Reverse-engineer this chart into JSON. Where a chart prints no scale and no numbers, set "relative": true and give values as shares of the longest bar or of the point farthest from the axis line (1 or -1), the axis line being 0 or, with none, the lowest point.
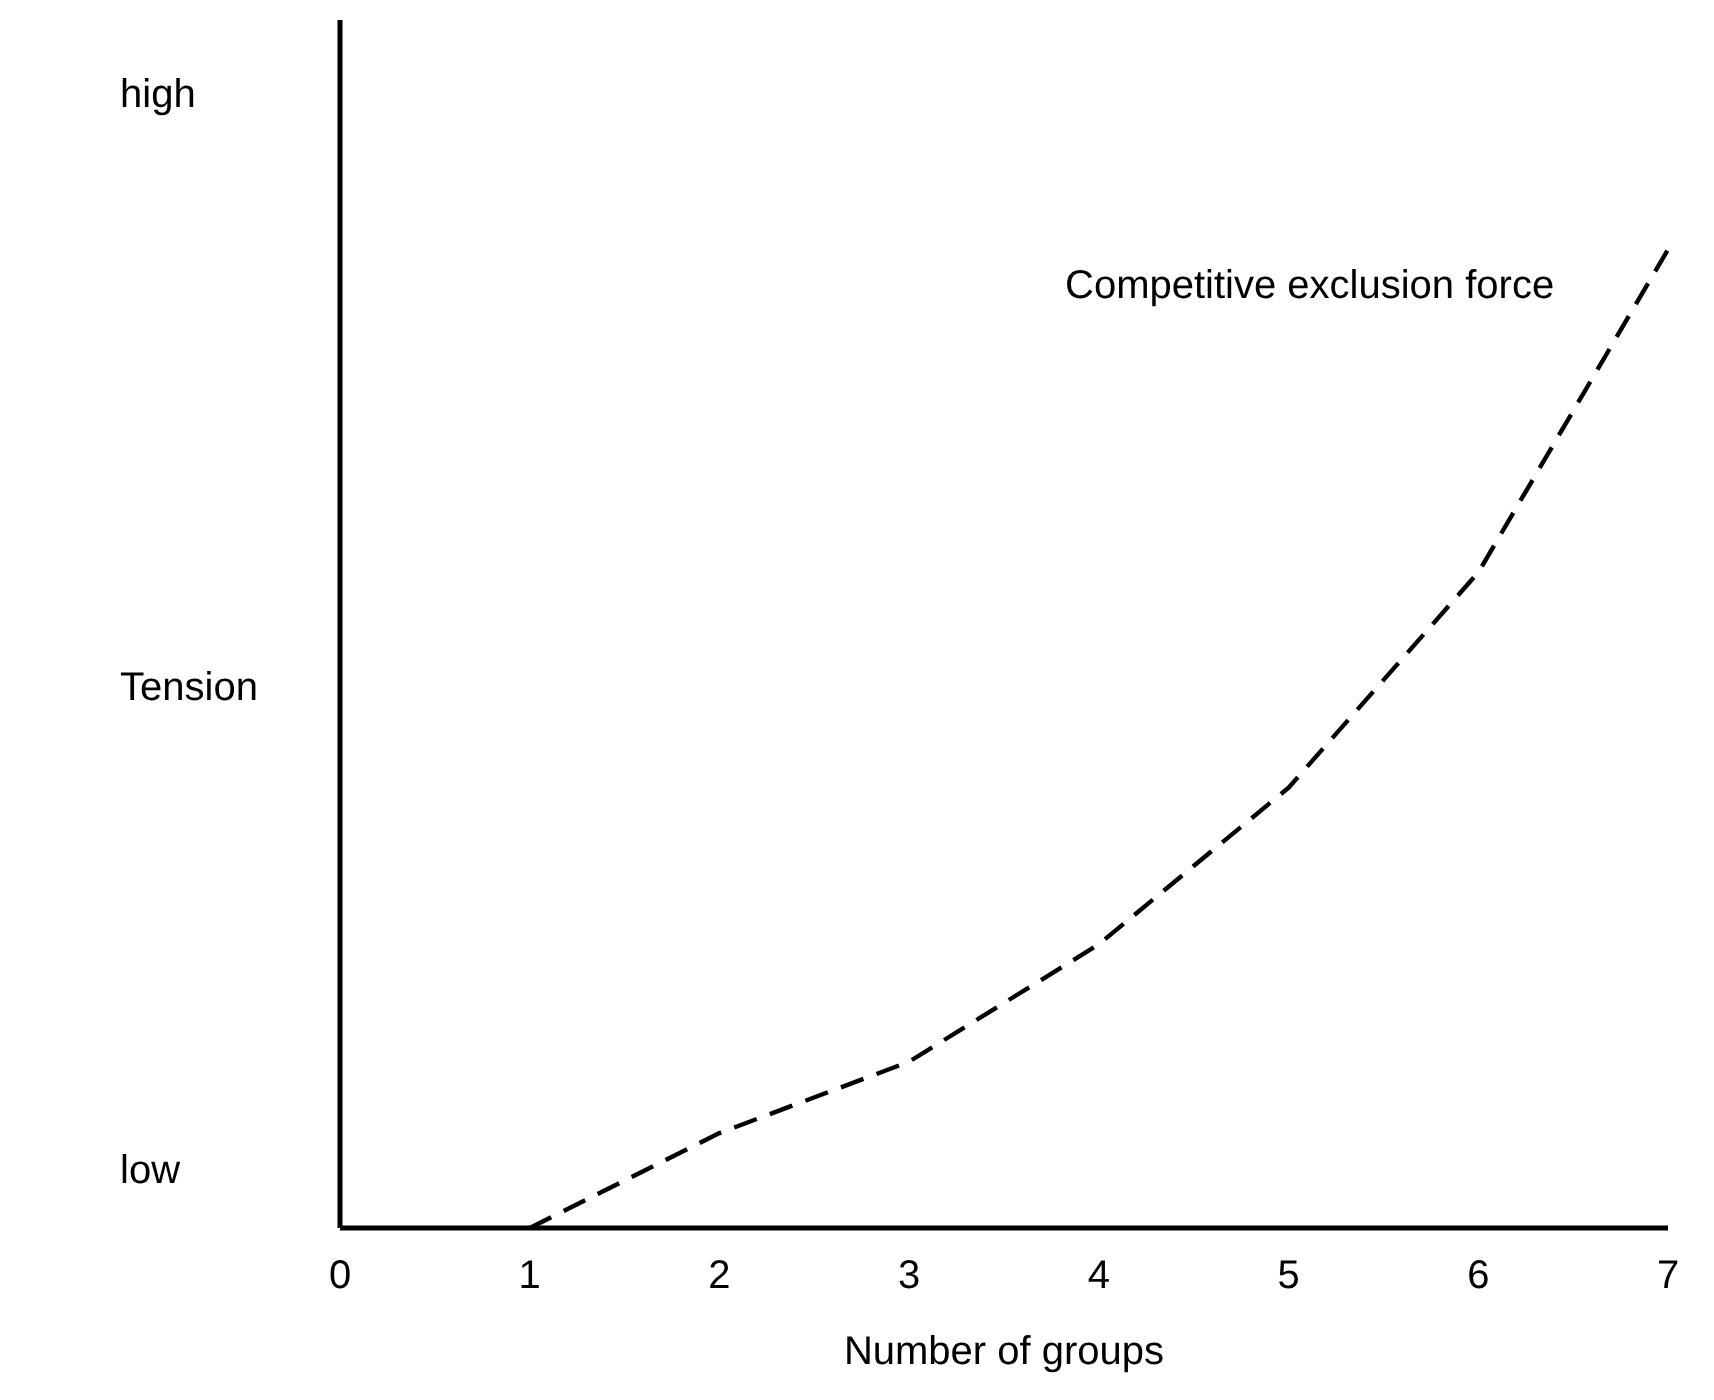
{
  "chart_data": {
    "type": "line",
    "relative": true,
    "xlabel": "Number of groups",
    "ylabel": "Tension",
    "x": [
      1,
      2,
      3,
      4,
      5,
      6,
      7
    ],
    "series": [
      {
        "color": "#000000",
        "values": [
          0,
          0.097,
          0.17,
          0.29,
          0.45,
          0.67,
          1
        ]
      }
    ],
    "xlim": [
      0,
      7
    ],
    "xticks": [
      0,
      1,
      2,
      3,
      4,
      5,
      6,
      7
    ],
    "grid": false,
    "marker": "none",
    "line_style": "dashed",
    "annotations": [
      "Competitive exclusion force",
      "high",
      "low"
    ]
  }
}
